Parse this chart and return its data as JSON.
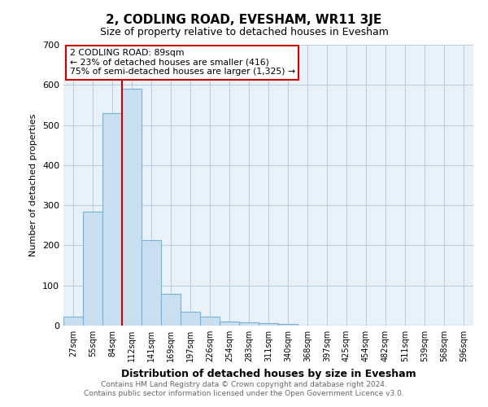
{
  "title": "2, CODLING ROAD, EVESHAM, WR11 3JE",
  "subtitle": "Size of property relative to detached houses in Evesham",
  "xlabel": "Distribution of detached houses by size in Evesham",
  "ylabel": "Number of detached properties",
  "footer_line1": "Contains HM Land Registry data © Crown copyright and database right 2024.",
  "footer_line2": "Contains public sector information licensed under the Open Government Licence v3.0.",
  "categories": [
    "27sqm",
    "55sqm",
    "84sqm",
    "112sqm",
    "141sqm",
    "169sqm",
    "197sqm",
    "226sqm",
    "254sqm",
    "283sqm",
    "311sqm",
    "340sqm",
    "368sqm",
    "397sqm",
    "425sqm",
    "454sqm",
    "482sqm",
    "511sqm",
    "539sqm",
    "568sqm",
    "596sqm"
  ],
  "values": [
    22,
    285,
    530,
    590,
    213,
    80,
    35,
    22,
    10,
    8,
    7,
    5,
    0,
    0,
    0,
    0,
    0,
    0,
    0,
    0,
    0
  ],
  "bar_color": "#c8dff0",
  "bar_edge_color": "#7ab0d4",
  "ylim": [
    0,
    700
  ],
  "yticks": [
    0,
    100,
    200,
    300,
    400,
    500,
    600,
    700
  ],
  "vline_x_index": 2,
  "vline_color": "#cc0000",
  "annotation_line1": "2 CODLING ROAD: 89sqm",
  "annotation_line2": "← 23% of detached houses are smaller (416)",
  "annotation_line3": "75% of semi-detached houses are larger (1,325) →",
  "annotation_box_color": "#cc0000",
  "plot_bg_color": "#e8f0f8",
  "background_color": "#ffffff",
  "grid_color": "#b8cce0",
  "title_fontsize": 11,
  "subtitle_fontsize": 9,
  "ylabel_fontsize": 8,
  "xlabel_fontsize": 9
}
